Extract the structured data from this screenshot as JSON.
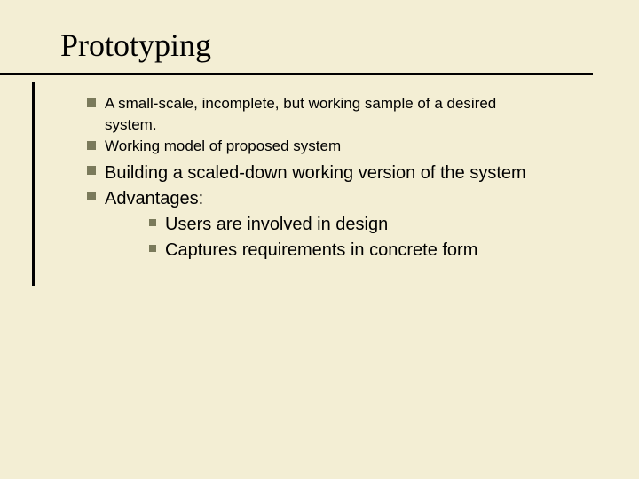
{
  "slide": {
    "title": "Prototyping",
    "background_color": "#f3eed4",
    "text_color": "#000000",
    "bullet_color": "#7a7a5b",
    "title_font": "Times New Roman",
    "body_font": "Arial",
    "title_fontsize_pt": 28,
    "body_fontsize_small_pt": 13,
    "body_fontsize_large_pt": 15,
    "bullets": {
      "level1": [
        {
          "text_line1": "A small-scale, incomplete, but working sample of a desired",
          "text_line2": "system.",
          "size": "small"
        },
        {
          "text": "Working model of proposed system",
          "size": "small"
        },
        {
          "text": "Building a scaled-down working version of the system",
          "size": "large"
        },
        {
          "text": "Advantages:",
          "size": "large",
          "children": [
            {
              "text": "Users are involved in design"
            },
            {
              "text": "Captures requirements in concrete form"
            }
          ]
        }
      ]
    }
  }
}
